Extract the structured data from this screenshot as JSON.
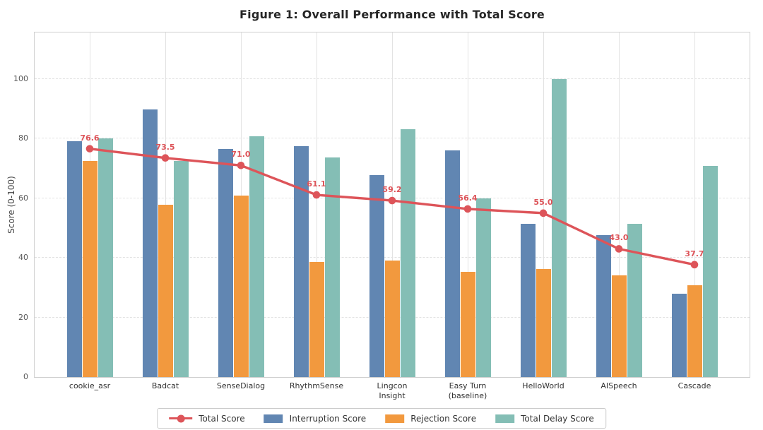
{
  "title": "Figure 1: Overall Performance with Total Score",
  "chart_data": {
    "type": "bar",
    "subtype": "grouped-bars-with-line-overlay",
    "title": "Figure 1: Overall Performance with Total Score",
    "xlabel": "",
    "ylabel": "Score (0-100)",
    "yticks": [
      0,
      20,
      40,
      60,
      80,
      100
    ],
    "ylim": [
      0,
      115.6
    ],
    "grid": {
      "horizontal": "dashed",
      "vertical": "solid-light"
    },
    "legend_position": "bottom-center",
    "categories": [
      "cookie_asr",
      "Badcat",
      "SenseDialog",
      "RhythmSense",
      "Lingcon\nInsight",
      "Easy Turn\n(baseline)",
      "HelloWorld",
      "AISpeech",
      "Cascade"
    ],
    "series": [
      {
        "name": "Total Score",
        "kind": "line",
        "color": "#dd5459",
        "point_labels": true,
        "values": [
          76.6,
          73.5,
          71.0,
          61.1,
          59.2,
          56.4,
          55.0,
          43.0,
          37.7
        ]
      },
      {
        "name": "Interruption Score",
        "kind": "bar",
        "color": "#6186b2",
        "values": [
          79.2,
          89.8,
          76.6,
          77.5,
          67.7,
          76.0,
          51.3,
          47.6,
          27.9
        ]
      },
      {
        "name": "Rejection Score",
        "kind": "bar",
        "color": "#f2993e",
        "values": [
          72.4,
          57.9,
          61.0,
          38.5,
          39.0,
          35.2,
          36.2,
          34.0,
          30.9
        ]
      },
      {
        "name": "Total Delay Score",
        "kind": "bar",
        "color": "#84beb5",
        "values": [
          80.0,
          72.6,
          80.7,
          73.6,
          83.2,
          60.0,
          100.0,
          51.5,
          70.8
        ]
      }
    ],
    "legend_order": [
      "Total Score",
      "Interruption Score",
      "Rejection Score",
      "Total Delay Score"
    ]
  }
}
